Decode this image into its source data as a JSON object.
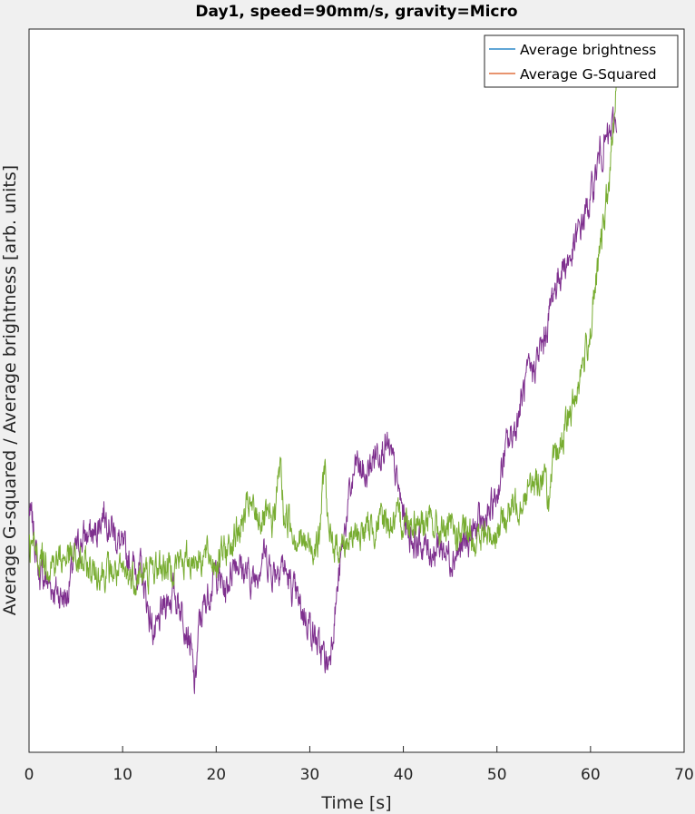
{
  "chart_data": {
    "type": "line",
    "title": "Day1, speed=90mm/s, gravity=Micro",
    "xlabel": "Time [s]",
    "ylabel": "Average G-squared / Average brightness [arb. units]",
    "xlim": [
      0,
      70
    ],
    "xticks": [
      "0",
      "10",
      "20",
      "30",
      "40",
      "50",
      "60",
      "70"
    ],
    "yticks_shown": false,
    "grid": false,
    "legend_position": "top-right",
    "legend": [
      {
        "label": "Average brightness",
        "color": "#0072bd"
      },
      {
        "label": "Average G-Squared",
        "color": "#d95319"
      }
    ],
    "series": [
      {
        "color": "#7e2f8e",
        "x": [
          0,
          0.5,
          1,
          2,
          3,
          4,
          5,
          6,
          7,
          8,
          9,
          10,
          11,
          12,
          12.8,
          13.5,
          14.5,
          15.5,
          16.5,
          17.3,
          17.7,
          18.2,
          19,
          20,
          21,
          22,
          23,
          24,
          25,
          26,
          27,
          28,
          29,
          30,
          31,
          32,
          33,
          34,
          35,
          36,
          37,
          38,
          39,
          40,
          41,
          42,
          43,
          44,
          45,
          46,
          47,
          48,
          49,
          50,
          51,
          52,
          53,
          54,
          55,
          56,
          57,
          58,
          59,
          60,
          61,
          62,
          62.8
        ],
        "y": [
          0.318,
          0.28,
          0.2,
          0.18,
          0.16,
          0.15,
          0.24,
          0.27,
          0.27,
          0.32,
          0.28,
          0.24,
          0.21,
          0.2,
          0.12,
          0.07,
          0.14,
          0.16,
          0.12,
          0.05,
          -0.03,
          0.1,
          0.15,
          0.2,
          0.16,
          0.23,
          0.2,
          0.18,
          0.24,
          0.2,
          0.22,
          0.17,
          0.13,
          0.1,
          0.05,
          0.02,
          0.17,
          0.32,
          0.41,
          0.38,
          0.43,
          0.45,
          0.4,
          0.31,
          0.26,
          0.25,
          0.24,
          0.25,
          0.23,
          0.24,
          0.26,
          0.29,
          0.3,
          0.35,
          0.44,
          0.48,
          0.56,
          0.6,
          0.64,
          0.74,
          0.79,
          0.81,
          0.87,
          0.92,
          1.01,
          1.04,
          1.08
        ]
      },
      {
        "color": "#77ac30",
        "x": [
          0,
          1,
          2,
          3,
          4,
          5,
          6,
          7,
          8,
          9,
          10,
          11,
          12,
          13,
          14,
          15,
          16,
          17,
          18,
          19,
          20,
          21,
          22,
          23,
          23.5,
          24,
          25,
          26,
          26.9,
          27.2,
          27.8,
          28.5,
          29,
          30,
          31,
          31.6,
          32,
          33,
          34,
          35,
          36,
          37,
          38,
          39,
          40,
          41,
          42,
          43,
          44,
          45,
          46,
          47,
          48,
          49,
          50,
          51,
          52,
          53,
          54,
          55,
          55.6,
          56,
          57,
          58,
          59,
          60,
          61,
          62,
          62.5,
          63
        ],
        "y": [
          0.25,
          0.23,
          0.22,
          0.22,
          0.23,
          0.22,
          0.21,
          0.2,
          0.2,
          0.2,
          0.19,
          0.19,
          0.19,
          0.2,
          0.21,
          0.21,
          0.22,
          0.22,
          0.23,
          0.23,
          0.22,
          0.24,
          0.27,
          0.3,
          0.33,
          0.31,
          0.3,
          0.29,
          0.41,
          0.31,
          0.3,
          0.27,
          0.26,
          0.25,
          0.26,
          0.42,
          0.26,
          0.25,
          0.26,
          0.27,
          0.28,
          0.29,
          0.3,
          0.29,
          0.3,
          0.3,
          0.3,
          0.29,
          0.28,
          0.28,
          0.27,
          0.27,
          0.26,
          0.27,
          0.28,
          0.31,
          0.33,
          0.35,
          0.37,
          0.39,
          0.33,
          0.4,
          0.46,
          0.51,
          0.59,
          0.67,
          0.82,
          0.95,
          1.08,
          1.2
        ]
      }
    ]
  }
}
